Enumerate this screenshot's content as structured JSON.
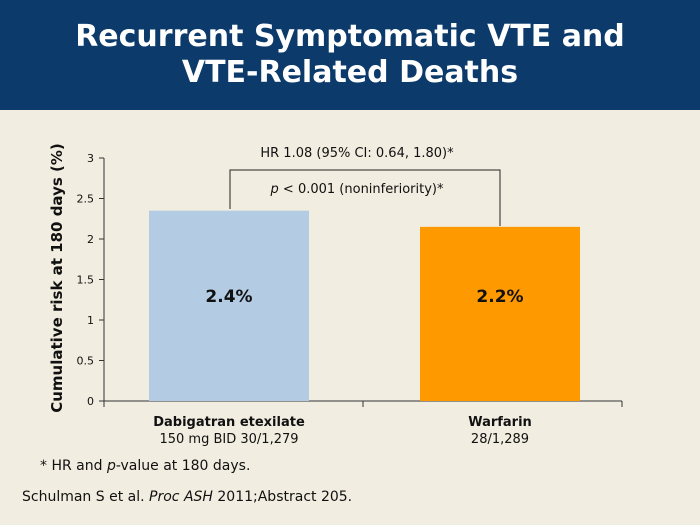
{
  "header": {
    "title_line1": "Recurrent Symptomatic VTE and",
    "title_line2": "VTE-Related Deaths"
  },
  "annotation": {
    "hr_text": "HR 1.08 (95% CI: 0.64, 1.80)*",
    "p_prefix": "p",
    "p_rest": " < 0.001 (noninferiority)*"
  },
  "footnote": {
    "star": "*",
    "text_a": "HR and ",
    "p": "p",
    "text_b": "-value at 180 days."
  },
  "citation": {
    "authors": "Schulman S et al. ",
    "journal": "Proc ASH",
    "rest": " 2011;Abstract 205."
  },
  "chart_data": {
    "type": "bar",
    "ylabel": "Cumulative risk at 180 days (%)",
    "ylim": [
      0,
      3
    ],
    "yticks": [
      "0",
      "0.5",
      "1",
      "1.5",
      "2",
      "2.5",
      "3"
    ],
    "categories": [
      {
        "label": "Dabigatran etexilate",
        "sublabel": "150 mg BID 30/1,279"
      },
      {
        "label": "Warfarin",
        "sublabel": "28/1,289"
      }
    ],
    "values": [
      2.35,
      2.15
    ],
    "data_labels": [
      "2.4%",
      "2.2%"
    ],
    "colors": [
      "#b3cce4",
      "#ff9900"
    ],
    "grid": false
  }
}
